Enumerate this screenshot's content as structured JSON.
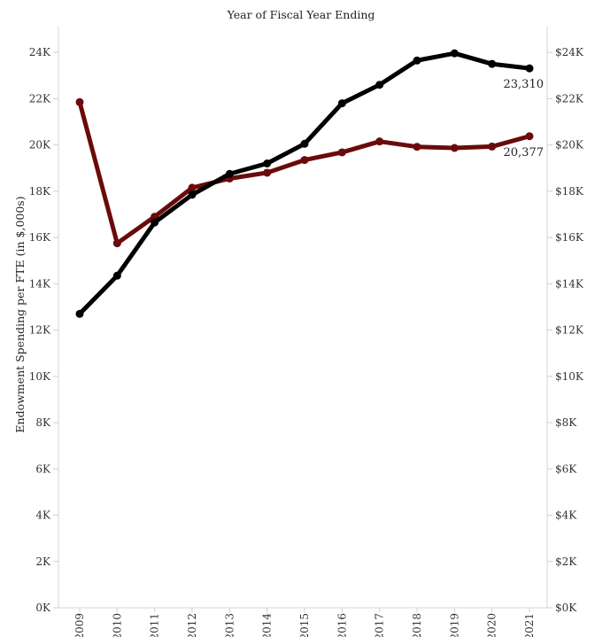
{
  "chart_data": {
    "type": "line",
    "title": "Year of Fiscal Year Ending",
    "ylabel": "Endowment Spending per FTE (in $,000s)",
    "x": [
      "2009",
      "2010",
      "2011",
      "2012",
      "2013",
      "2014",
      "2015",
      "2016",
      "2017",
      "2018",
      "2019",
      "2020",
      "2021"
    ],
    "ylim": [
      0,
      25000
    ],
    "left_ticks": [
      {
        "value": 0,
        "label": "0K"
      },
      {
        "value": 2000,
        "label": "2K"
      },
      {
        "value": 4000,
        "label": "4K"
      },
      {
        "value": 6000,
        "label": "6K"
      },
      {
        "value": 8000,
        "label": "8K"
      },
      {
        "value": 10000,
        "label": "10K"
      },
      {
        "value": 12000,
        "label": "12K"
      },
      {
        "value": 14000,
        "label": "14K"
      },
      {
        "value": 16000,
        "label": "16K"
      },
      {
        "value": 18000,
        "label": "18K"
      },
      {
        "value": 20000,
        "label": "20K"
      },
      {
        "value": 22000,
        "label": "22K"
      },
      {
        "value": 24000,
        "label": "24K"
      }
    ],
    "right_ticks": [
      {
        "value": 0,
        "label": "$0K"
      },
      {
        "value": 2000,
        "label": "$2K"
      },
      {
        "value": 4000,
        "label": "$4K"
      },
      {
        "value": 6000,
        "label": "$6K"
      },
      {
        "value": 8000,
        "label": "$8K"
      },
      {
        "value": 10000,
        "label": "$10K"
      },
      {
        "value": 12000,
        "label": "$12K"
      },
      {
        "value": 14000,
        "label": "$14K"
      },
      {
        "value": 16000,
        "label": "$16K"
      },
      {
        "value": 18000,
        "label": "$18K"
      },
      {
        "value": 20000,
        "label": "$20K"
      },
      {
        "value": 22000,
        "label": "$22K"
      },
      {
        "value": 24000,
        "label": "$24K"
      }
    ],
    "grid": false,
    "series": [
      {
        "color": "#6b0a0a",
        "values": [
          21850,
          15750,
          16900,
          18150,
          18550,
          18800,
          19350,
          19680,
          20150,
          19920,
          19870,
          19930,
          20377
        ],
        "end_label": "20,377"
      },
      {
        "color": "#000000",
        "values": [
          12700,
          14350,
          16650,
          17850,
          18750,
          19200,
          20050,
          21800,
          22600,
          23650,
          23960,
          23500,
          23310
        ],
        "end_label": "23,310"
      }
    ]
  }
}
